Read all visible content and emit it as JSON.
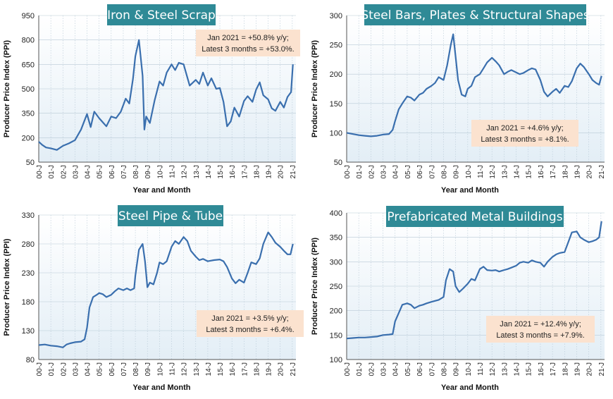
{
  "chart_data": [
    {
      "type": "line",
      "title": "Iron & Steel Scrap",
      "xlabel": "Year and Month",
      "ylabel": "Producer Price Index (PPI)",
      "ylim": [
        50,
        950
      ],
      "yticks": [
        50,
        200,
        350,
        500,
        650,
        800,
        950
      ],
      "xticks": [
        "00-J",
        "01-J",
        "02-J",
        "03-J",
        "04-J",
        "05-J",
        "06-J",
        "07-J",
        "08-J",
        "09-J",
        "10-J",
        "11-J",
        "12-J",
        "13-J",
        "14-J",
        "15-J",
        "16-J",
        "17-J",
        "18-J",
        "19-J",
        "20-J",
        "21-J"
      ],
      "annotation": [
        "Jan 2021 = +50.8% y/y;",
        "Latest 3 months = +53.0%."
      ],
      "series": [
        {
          "name": "Iron & Steel Scrap",
          "x": [
            0,
            0.3,
            0.6,
            1,
            1.5,
            2,
            2.5,
            3,
            3.5,
            4,
            4.3,
            4.6,
            5,
            5.3,
            5.6,
            6,
            6.4,
            6.8,
            7.2,
            7.5,
            7.8,
            8,
            8.3,
            8.6,
            8.75,
            8.9,
            9.2,
            9.6,
            10,
            10.3,
            10.6,
            11,
            11.3,
            11.6,
            12,
            12.5,
            13,
            13.3,
            13.6,
            14,
            14.3,
            14.7,
            15,
            15.3,
            15.6,
            15.9,
            16.2,
            16.6,
            17,
            17.3,
            17.7,
            18,
            18.3,
            18.6,
            19,
            19.3,
            19.6,
            20,
            20.3,
            20.6,
            20.9,
            21.05
          ],
          "values": [
            175,
            155,
            140,
            135,
            125,
            150,
            165,
            185,
            250,
            345,
            265,
            360,
            320,
            295,
            270,
            330,
            320,
            360,
            440,
            410,
            560,
            700,
            800,
            580,
            250,
            330,
            290,
            430,
            545,
            520,
            600,
            650,
            615,
            660,
            650,
            520,
            555,
            530,
            600,
            520,
            565,
            500,
            505,
            420,
            270,
            300,
            385,
            330,
            425,
            455,
            420,
            495,
            540,
            460,
            435,
            380,
            365,
            420,
            385,
            450,
            480,
            650
          ]
        }
      ]
    },
    {
      "type": "line",
      "title": "Steel Bars, Plates & Structural Shapes",
      "xlabel": "Year and Month",
      "ylabel": "Producer Price Index (PPI)",
      "ylim": [
        50,
        300
      ],
      "yticks": [
        50,
        100,
        150,
        200,
        250,
        300
      ],
      "xticks": [
        "00-J",
        "01-J",
        "02-J",
        "03-J",
        "04-J",
        "05-J",
        "06-J",
        "07-J",
        "08-J",
        "09-J",
        "10-J",
        "11-J",
        "12-J",
        "13-J",
        "14-J",
        "15-J",
        "16-J",
        "17-J",
        "18-J",
        "19-J",
        "20-J",
        "21-J"
      ],
      "annotation": [
        "Jan 2021 = +4.6% y/y;",
        "Latest 3 months = +8.1%."
      ],
      "series": [
        {
          "name": "Steel Bars, Plates & Structural Shapes",
          "x": [
            0,
            0.5,
            1,
            1.5,
            2,
            2.5,
            3,
            3.5,
            3.8,
            4,
            4.3,
            4.6,
            5,
            5.3,
            5.6,
            6,
            6.3,
            6.6,
            7,
            7.3,
            7.6,
            8,
            8.3,
            8.6,
            8.8,
            9,
            9.2,
            9.5,
            9.8,
            10,
            10.3,
            10.6,
            11,
            11.3,
            11.6,
            12,
            12.3,
            12.6,
            13,
            13.3,
            13.6,
            14,
            14.3,
            14.6,
            15,
            15.3,
            15.6,
            16,
            16.3,
            16.6,
            17,
            17.3,
            17.6,
            18,
            18.3,
            18.6,
            19,
            19.3,
            19.6,
            20,
            20.3,
            20.6,
            20.85,
            21.05
          ],
          "values": [
            100,
            98,
            96,
            95,
            94,
            95,
            97,
            98,
            105,
            120,
            140,
            150,
            162,
            160,
            155,
            165,
            168,
            175,
            180,
            185,
            195,
            190,
            215,
            250,
            268,
            230,
            190,
            165,
            162,
            175,
            180,
            195,
            200,
            210,
            220,
            228,
            222,
            215,
            200,
            204,
            207,
            203,
            200,
            202,
            207,
            210,
            208,
            190,
            170,
            162,
            170,
            175,
            168,
            180,
            178,
            188,
            210,
            218,
            212,
            200,
            190,
            185,
            182,
            197
          ]
        }
      ]
    },
    {
      "type": "line",
      "title": "Steel Pipe & Tube",
      "xlabel": "Year and Month",
      "ylabel": "Producer Price Index (PPI)",
      "ylim": [
        80,
        330
      ],
      "yticks": [
        80,
        130,
        180,
        230,
        280,
        330
      ],
      "xticks": [
        "00-J",
        "01-J",
        "02-J",
        "03-J",
        "04-J",
        "05-J",
        "06-J",
        "07-J",
        "08-J",
        "09-J",
        "10-J",
        "11-J",
        "12-J",
        "13-J",
        "14-J",
        "15-J",
        "16-J",
        "17-J",
        "18-J",
        "19-J",
        "20-J",
        "21-J"
      ],
      "annotation": [
        "Jan 2021 = +3.5% y/y;",
        "Latest 3 months = +6.4%."
      ],
      "series": [
        {
          "name": "Steel Pipe & Tube",
          "x": [
            0,
            0.5,
            1,
            1.5,
            2,
            2.3,
            2.6,
            3,
            3.5,
            3.8,
            4,
            4.2,
            4.5,
            4.8,
            5,
            5.3,
            5.6,
            6,
            6.3,
            6.6,
            7,
            7.3,
            7.6,
            7.9,
            8,
            8.3,
            8.6,
            8.8,
            9,
            9.2,
            9.5,
            9.8,
            10,
            10.3,
            10.6,
            11,
            11.3,
            11.6,
            12,
            12.3,
            12.6,
            13,
            13.3,
            13.6,
            14,
            14.5,
            15,
            15.3,
            15.6,
            16,
            16.3,
            16.6,
            17,
            17.3,
            17.6,
            18,
            18.3,
            18.6,
            19,
            19.3,
            19.6,
            20,
            20.3,
            20.6,
            20.85,
            21.05
          ],
          "values": [
            105,
            106,
            104,
            103,
            101,
            106,
            108,
            110,
            111,
            115,
            135,
            170,
            188,
            192,
            195,
            193,
            188,
            192,
            198,
            203,
            200,
            203,
            200,
            203,
            225,
            270,
            280,
            250,
            205,
            213,
            210,
            230,
            248,
            245,
            250,
            275,
            285,
            280,
            292,
            285,
            268,
            258,
            252,
            254,
            250,
            252,
            253,
            250,
            240,
            220,
            212,
            218,
            213,
            230,
            248,
            245,
            255,
            280,
            300,
            292,
            282,
            275,
            268,
            262,
            262,
            280
          ]
        }
      ]
    },
    {
      "type": "line",
      "title": "Prefabricated Metal Buildings",
      "xlabel": "Year and Month",
      "ylabel": "Producer Price Index (PPI)",
      "ylim": [
        100,
        400
      ],
      "yticks": [
        100,
        150,
        200,
        250,
        300,
        350,
        400
      ],
      "xticks": [
        "00-J",
        "01-J",
        "02-J",
        "03-J",
        "04-J",
        "05-J",
        "06-J",
        "07-J",
        "08-J",
        "09-J",
        "10-J",
        "11-J",
        "12-J",
        "13-J",
        "14-J",
        "15-J",
        "16-J",
        "17-J",
        "18-J",
        "19-J",
        "20-J",
        "21-J"
      ],
      "annotation": [
        "Jan 2021 = +12.4% y/y;",
        "Latest 3 months = +7.9%."
      ],
      "series": [
        {
          "name": "Prefabricated Metal Buildings",
          "x": [
            0,
            0.5,
            1,
            1.5,
            2,
            2.5,
            3,
            3.5,
            3.8,
            4,
            4.3,
            4.6,
            5,
            5.3,
            5.6,
            6,
            6.3,
            6.6,
            7,
            7.3,
            7.6,
            8,
            8.2,
            8.5,
            8.8,
            9,
            9.3,
            9.6,
            10,
            10.3,
            10.6,
            11,
            11.3,
            11.6,
            12,
            12.3,
            12.6,
            13,
            13.3,
            13.6,
            14,
            14.3,
            14.6,
            15,
            15.3,
            15.6,
            16,
            16.3,
            16.6,
            17,
            17.3,
            17.6,
            18,
            18.3,
            18.6,
            19,
            19.3,
            19.6,
            20,
            20.3,
            20.6,
            20.85,
            21.05
          ],
          "values": [
            143,
            144,
            145,
            145,
            146,
            147,
            150,
            151,
            152,
            178,
            195,
            212,
            215,
            212,
            205,
            210,
            212,
            215,
            218,
            220,
            222,
            228,
            262,
            285,
            280,
            250,
            238,
            245,
            255,
            265,
            262,
            285,
            290,
            283,
            282,
            283,
            280,
            283,
            285,
            288,
            292,
            298,
            300,
            298,
            303,
            300,
            298,
            290,
            300,
            310,
            315,
            318,
            320,
            340,
            360,
            362,
            350,
            345,
            340,
            342,
            345,
            350,
            383
          ]
        }
      ]
    }
  ]
}
